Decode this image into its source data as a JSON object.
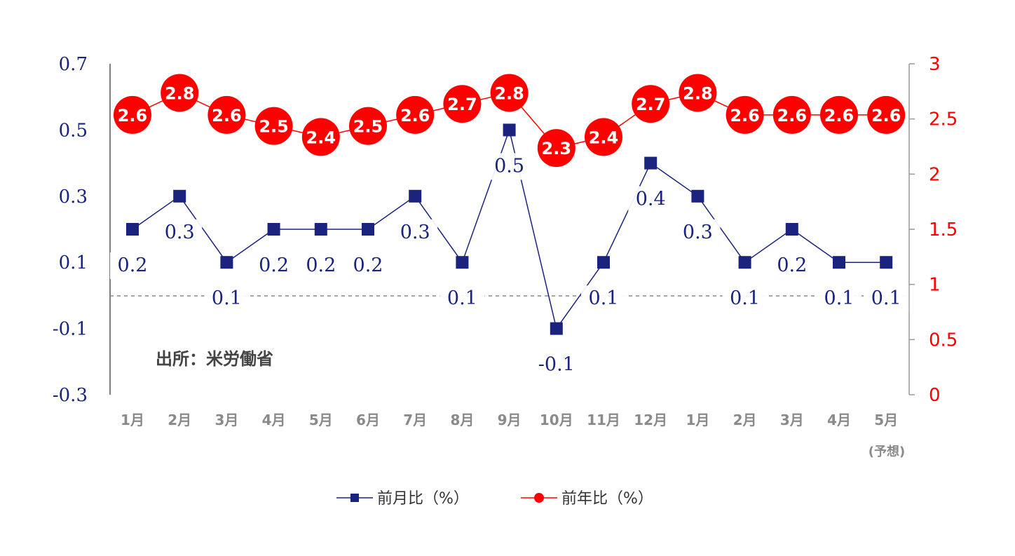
{
  "chart_data": {
    "type": "line",
    "categories": [
      "1月",
      "2月",
      "3月",
      "4月",
      "5月",
      "6月",
      "7月",
      "8月",
      "9月",
      "10月",
      "11月",
      "12月",
      "1月",
      "2月",
      "3月",
      "4月",
      "5月"
    ],
    "category_note": "(予想)",
    "series": [
      {
        "name": "前月比（%）",
        "axis": "left",
        "marker": "square",
        "color": "#1a237e",
        "values": [
          0.2,
          0.3,
          0.1,
          0.2,
          0.2,
          0.2,
          0.3,
          0.1,
          0.5,
          -0.1,
          0.1,
          0.4,
          0.3,
          0.1,
          0.2,
          0.1,
          0.1
        ],
        "labels": [
          "0.2",
          "0.3",
          "0.1",
          "0.2",
          "0.2",
          "0.2",
          "0.3",
          "0.1",
          "0.5",
          "-0.1",
          "0.1",
          "0.4",
          "0.3",
          "0.1",
          "0.2",
          "0.1",
          "0.1"
        ]
      },
      {
        "name": "前年比（%）",
        "axis": "right",
        "marker": "circle",
        "color": "#ff0000",
        "values": [
          2.6,
          2.8,
          2.6,
          2.5,
          2.4,
          2.5,
          2.6,
          2.7,
          2.8,
          2.3,
          2.4,
          2.7,
          2.8,
          2.6,
          2.6,
          2.6,
          2.6
        ],
        "labels": [
          "2.6",
          "2.8",
          "2.6",
          "2.5",
          "2.4",
          "2.5",
          "2.6",
          "2.7",
          "2.8",
          "2.3",
          "2.4",
          "2.7",
          "2.8",
          "2.6",
          "2.6",
          "2.6",
          "2.6"
        ]
      }
    ],
    "y_left": {
      "ticks": [
        "0.7",
        "0.5",
        "0.3",
        "0.1",
        "-0.1",
        "-0.3"
      ],
      "tick_values": [
        0.7,
        0.5,
        0.3,
        0.1,
        -0.1,
        -0.3
      ],
      "ylim": [
        -0.3,
        0.7
      ]
    },
    "y_right": {
      "ticks": [
        "3",
        "2.5",
        "2",
        "1.5",
        "1",
        "0.5",
        "0"
      ],
      "tick_values": [
        3,
        2.5,
        2,
        1.5,
        1,
        0.5,
        0
      ],
      "ylim": [
        0,
        3
      ]
    },
    "reference_line": 0,
    "annotation": "出所：米労働省",
    "legend_position": "bottom-center"
  }
}
